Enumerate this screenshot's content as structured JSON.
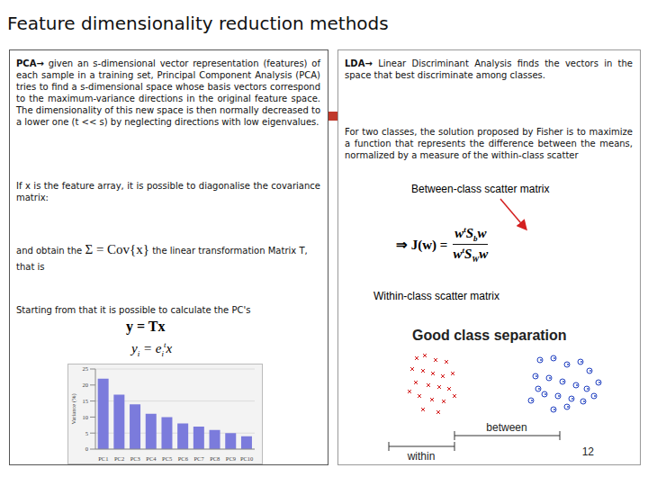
{
  "title": "Feature dimensionality reduction methods",
  "page_number": "12",
  "pca": {
    "lead": "PCA→",
    "text": "given an s-dimensional vector representation (features) of each sample in a training set, Principal Component Analysis (PCA) tries to find a s-dimensional space whose basis vectors correspond to the maximum-variance directions in the original feature space. The dimensionality of this new space is then normally decreased to a lower one (t << s) by neglecting directions with low eigenvalues.",
    "diag_text": "If x is the feature array, it is possible to diagonalise the covariance matrix:",
    "obtain_before": "and obtain the",
    "cov_formula": "Σ = Cov{x}",
    "obtain_after": "the linear transformation Matrix T, that is",
    "pcs_text": "Starting from that it is possible to calculate the PC's",
    "formula_y": [
      {
        "t": "y = Tx"
      }
    ],
    "formula_yi": [
      {
        "t": "y"
      },
      {
        "sub": "i"
      },
      {
        "t": " = e"
      },
      {
        "sub": "i"
      },
      {
        "sup": "t"
      },
      {
        "t": "x"
      }
    ]
  },
  "lda": {
    "lead": "LDA→",
    "text": "Linear Discriminant Analysis finds the vectors in the space that best discriminate among classes.",
    "fisher_text": "For two classes, the solution proposed by Fisher is to maximize a function that represents the difference between the means, normalized by a measure of the within-class scatter",
    "between_label": "Between-class scatter matrix",
    "within_label": "Within-class scatter matrix",
    "formula_lhs": "⇒ J(w) =",
    "numerator": [
      {
        "t": "w"
      },
      {
        "sup": "t"
      },
      {
        "t": "S"
      },
      {
        "sub": "b"
      },
      {
        "t": "w"
      }
    ],
    "denominator": [
      {
        "t": "w"
      },
      {
        "sup": "t"
      },
      {
        "t": "S"
      },
      {
        "sub": "W"
      },
      {
        "t": "w"
      }
    ]
  },
  "illustration": {
    "title": "Good class separation",
    "within": "within",
    "between": "between"
  },
  "chart_data": {
    "type": "bar",
    "categories": [
      "PC1",
      "PC2",
      "PC3",
      "PC4",
      "PC5",
      "PC6",
      "PC7",
      "PC8",
      "PC9",
      "PC10"
    ],
    "values": [
      22,
      17,
      14,
      11,
      10,
      8,
      7,
      6,
      5,
      4
    ],
    "color": "#7b7bdc",
    "y_label": "Variance (%)",
    "ylim": [
      0,
      25
    ],
    "yticks": [
      0,
      5,
      10,
      15,
      20,
      25
    ],
    "grid": true
  }
}
